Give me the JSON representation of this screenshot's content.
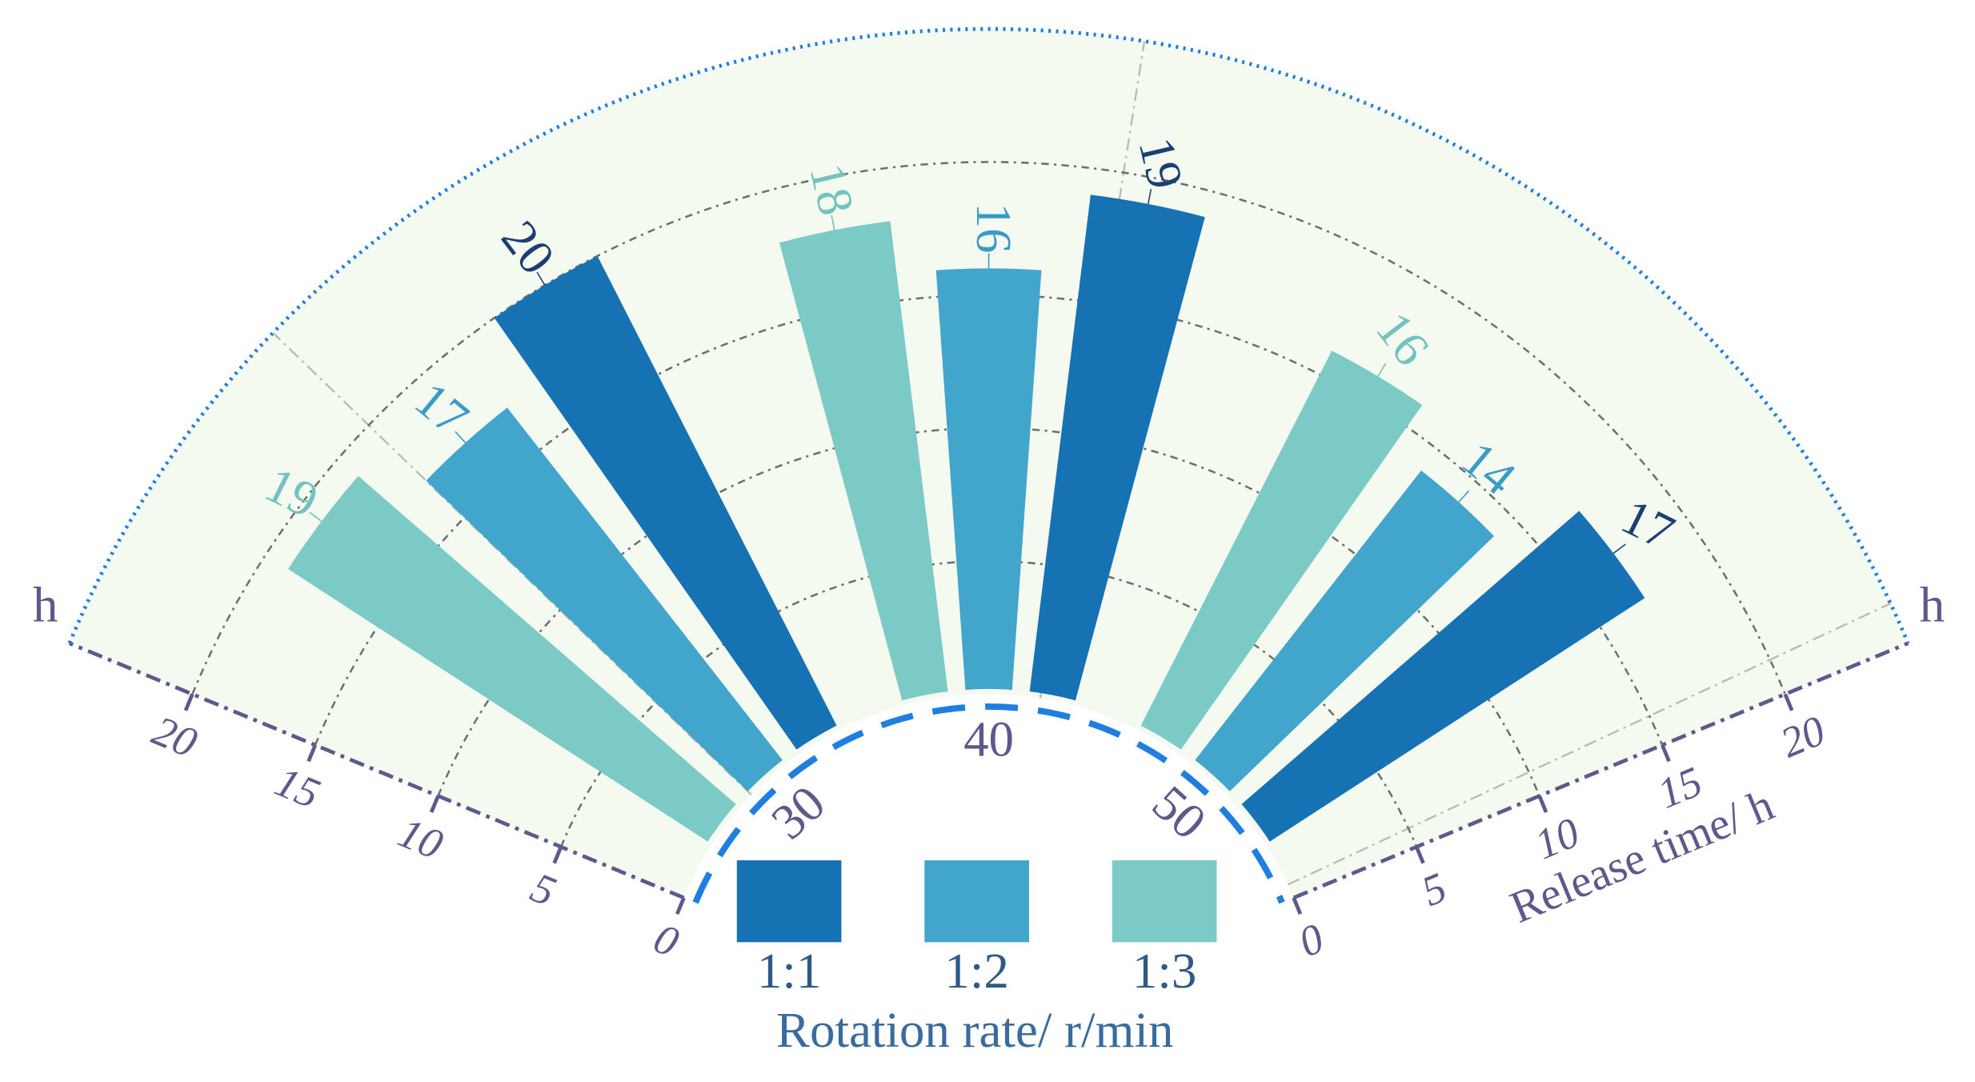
{
  "chart_data": {
    "type": "polar_bar",
    "categories": [
      "30",
      "40",
      "50"
    ],
    "series": [
      {
        "name": "1:1",
        "color": "#1772b4",
        "label_color": "#1b3f73",
        "values": [
          20,
          19,
          17
        ]
      },
      {
        "name": "1:2",
        "color": "#42a5cb",
        "label_color": "#3a9cc6",
        "values": [
          17,
          16,
          14
        ]
      },
      {
        "name": "1:3",
        "color": "#7ccac5",
        "label_color": "#72c2bd",
        "values": [
          19,
          18,
          16
        ]
      }
    ],
    "ylim": [
      0,
      25
    ],
    "yticks": [
      0,
      5,
      10,
      15,
      20
    ],
    "y_label": "Release time/ h",
    "y_unit": "h",
    "legend_title": "Rotation rate/ r/min",
    "grid": true
  }
}
